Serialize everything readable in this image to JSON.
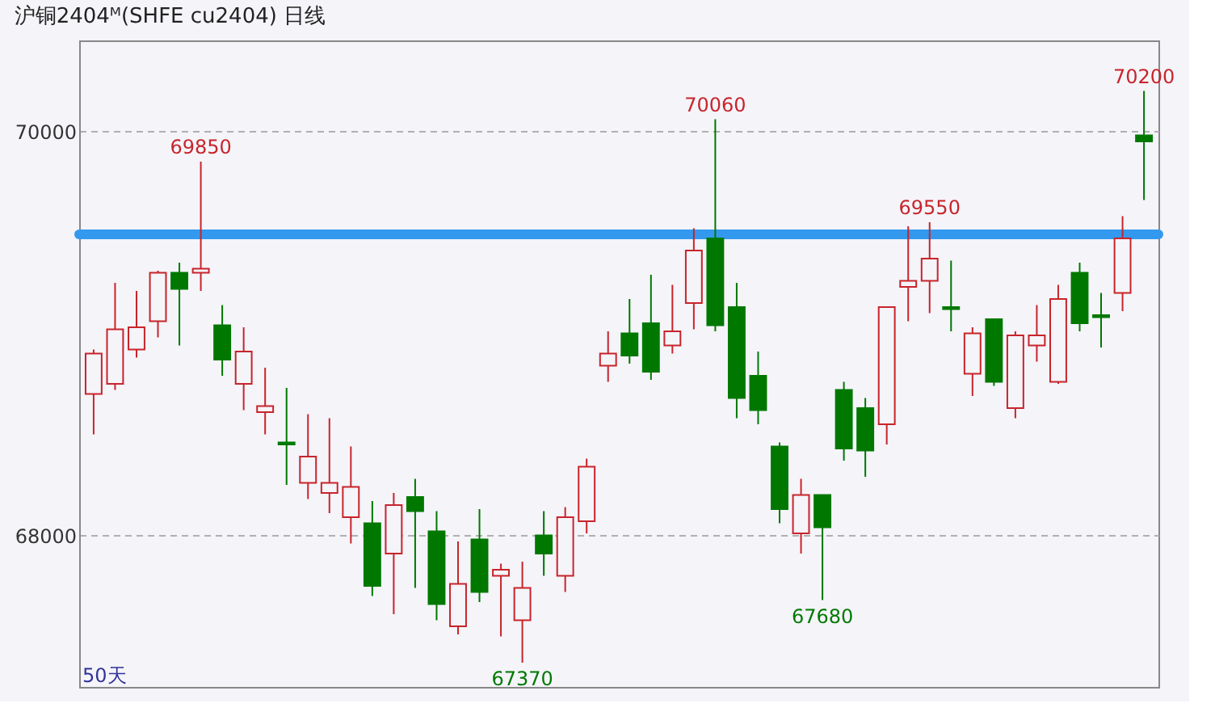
{
  "chart_data": {
    "type": "candlestick",
    "title": "沪铜2404ᴹ(SHFE cu2404) 日线",
    "categories": [
      null,
      null,
      null,
      null,
      null,
      null,
      null,
      null,
      null,
      null,
      null,
      null,
      null,
      null,
      null,
      null,
      null,
      null,
      null,
      null,
      null,
      null,
      null,
      null,
      null,
      null,
      null,
      null,
      null,
      null,
      null,
      null,
      null,
      null,
      null,
      null,
      null,
      null,
      null,
      null,
      null,
      null,
      null,
      null,
      null,
      null,
      null,
      null,
      null,
      null
    ],
    "ohlc": [
      [
        68700,
        68920,
        68500,
        68900
      ],
      [
        68750,
        69250,
        68720,
        69020
      ],
      [
        68920,
        69210,
        68880,
        69030
      ],
      [
        69060,
        69310,
        68980,
        69300
      ],
      [
        69300,
        69350,
        68940,
        69220
      ],
      [
        69300,
        69850,
        69210,
        69320
      ],
      [
        69040,
        69140,
        68790,
        68870
      ],
      [
        68750,
        69030,
        68620,
        68910
      ],
      [
        68610,
        68830,
        68500,
        68640
      ],
      [
        68460,
        68730,
        68250,
        68450
      ],
      [
        68260,
        68600,
        68180,
        68390
      ],
      [
        68210,
        68580,
        68110,
        68260
      ],
      [
        68090,
        68440,
        67960,
        68240
      ],
      [
        68060,
        68170,
        67700,
        67750
      ],
      [
        67910,
        68210,
        67610,
        68150
      ],
      [
        68190,
        68280,
        67740,
        68120
      ],
      [
        68020,
        68120,
        67580,
        67660
      ],
      [
        67550,
        67970,
        67510,
        67760
      ],
      [
        67980,
        68130,
        67670,
        67720
      ],
      [
        67800,
        67860,
        67500,
        67830
      ],
      [
        67580,
        67870,
        67370,
        67740
      ],
      [
        68000,
        68120,
        67800,
        67910
      ],
      [
        67800,
        68140,
        67720,
        68090
      ],
      [
        68070,
        68380,
        68010,
        68340
      ],
      [
        68840,
        69010,
        68760,
        68900
      ],
      [
        69000,
        69170,
        68850,
        68890
      ],
      [
        69050,
        69290,
        68770,
        68810
      ],
      [
        68940,
        69240,
        68900,
        69010
      ],
      [
        69150,
        69520,
        69020,
        69410
      ],
      [
        69470,
        70060,
        69010,
        69040
      ],
      [
        69130,
        69250,
        68580,
        68680
      ],
      [
        68790,
        68910,
        68550,
        68620
      ],
      [
        68440,
        68460,
        68060,
        68130
      ],
      [
        68010,
        68280,
        67910,
        68200
      ],
      [
        68200,
        68200,
        67680,
        68040
      ],
      [
        68720,
        68760,
        68370,
        68430
      ],
      [
        68630,
        68680,
        68290,
        68420
      ],
      [
        68550,
        69130,
        68450,
        69130
      ],
      [
        69230,
        69530,
        69060,
        69260
      ],
      [
        69260,
        69550,
        69100,
        69370
      ],
      [
        69130,
        69360,
        69010,
        69120
      ],
      [
        68800,
        69030,
        68690,
        69000
      ],
      [
        69070,
        69070,
        68740,
        68760
      ],
      [
        68630,
        69010,
        68580,
        68990
      ],
      [
        68940,
        69140,
        68860,
        68990
      ],
      [
        68760,
        69240,
        68750,
        69170
      ],
      [
        69300,
        69350,
        69010,
        69050
      ],
      [
        69090,
        69200,
        68930,
        69080
      ],
      [
        69200,
        69580,
        69110,
        69470
      ],
      [
        69980,
        70200,
        69660,
        69950
      ]
    ],
    "colors": [
      "#c8242b",
      "#c8242b",
      "#c8242b",
      "#c8242b",
      "#007800",
      "#c8242b",
      "#007800",
      "#c8242b",
      "#c8242b",
      "#007800",
      "#c8242b",
      "#c8242b",
      "#c8242b",
      "#007800",
      "#c8242b",
      "#007800",
      "#007800",
      "#c8242b",
      "#007800",
      "#c8242b",
      "#c8242b",
      "#007800",
      "#c8242b",
      "#c8242b",
      "#c8242b",
      "#007800",
      "#007800",
      "#c8242b",
      "#c8242b",
      "#007800",
      "#007800",
      "#007800",
      "#007800",
      "#c8242b",
      "#007800",
      "#007800",
      "#007800",
      "#c8242b",
      "#c8242b",
      "#c8242b",
      "#007800",
      "#c8242b",
      "#007800",
      "#c8242b",
      "#c8242b",
      "#c8242b",
      "#007800",
      "#007800",
      "#c8242b",
      "#007800"
    ],
    "ylim": [
      67250,
      70450
    ],
    "yticks": [
      68000,
      70000
    ],
    "grid": "y",
    "ref_lines": [
      {
        "axis": "y",
        "value": 69490,
        "label": null,
        "color": "#3399ee"
      }
    ],
    "annotations": [
      {
        "text": "69850",
        "y": 69850
      },
      {
        "text": "70060",
        "y": 70060
      },
      {
        "text": "69550",
        "y": 69550
      },
      {
        "text": "70200",
        "y": 70200
      },
      {
        "text": "67370",
        "y": 67370
      },
      {
        "text": "67680",
        "y": 67680
      },
      "50天"
    ]
  }
}
